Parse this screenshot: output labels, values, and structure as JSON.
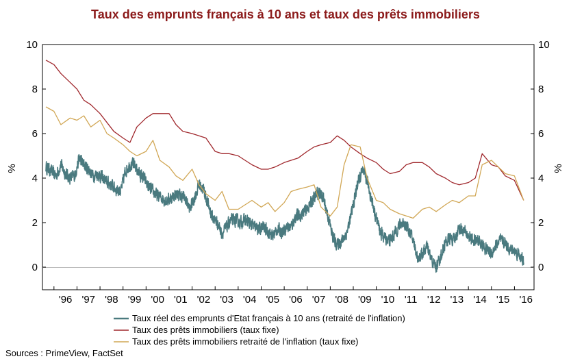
{
  "chart_data": {
    "type": "line",
    "title": "Taux des emprunts français à 10 ans et taux des prêts immobiliers",
    "title_color": "#8B1A1A",
    "ylabel_left": "%",
    "ylabel_right": "%",
    "ylim": [
      -1,
      10
    ],
    "yticks": [
      0,
      2,
      4,
      6,
      8,
      10
    ],
    "xlim": [
      1995.5,
      2016.85
    ],
    "x_tick_labels": [
      "'96",
      "'97",
      "'98",
      "'99",
      "'00",
      "'01",
      "'02",
      "'03",
      "'04",
      "'05",
      "'06",
      "'07",
      "'08",
      "'09",
      "'10",
      "'11",
      "'12",
      "'13",
      "'14",
      "'15",
      "'16"
    ],
    "x_tick_positions": [
      1996.5,
      1997.5,
      1998.5,
      1999.5,
      2000.5,
      2001.5,
      2002.5,
      2003.5,
      2004.5,
      2005.5,
      2006.5,
      2007.5,
      2008.5,
      2009.5,
      2010.5,
      2011.5,
      2012.5,
      2013.5,
      2014.5,
      2015.5,
      2016.5
    ],
    "grid": false,
    "legend_placement": "bottom",
    "source": "Sources : PrimeView, FactSet",
    "series": [
      {
        "name": "Taux réel des emprunts d'Etat français à 10 ans (retraité de l'inflation)",
        "color": "#4A7A7F",
        "noisy": true,
        "x": [
          1995.65,
          1995.9,
          1996.1,
          1996.3,
          1996.5,
          1996.7,
          1996.9,
          1997.1,
          1997.3,
          1997.5,
          1997.7,
          1997.9,
          1998.1,
          1998.3,
          1998.5,
          1998.7,
          1998.9,
          1999.1,
          1999.3,
          1999.5,
          1999.7,
          1999.9,
          2000.1,
          2000.3,
          2000.5,
          2000.7,
          2000.9,
          2001.1,
          2001.3,
          2001.5,
          2001.7,
          2001.9,
          2002.1,
          2002.3,
          2002.5,
          2002.7,
          2002.9,
          2003.1,
          2003.3,
          2003.5,
          2003.7,
          2003.9,
          2004.1,
          2004.3,
          2004.5,
          2004.7,
          2004.9,
          2005.1,
          2005.3,
          2005.5,
          2005.7,
          2005.9,
          2006.1,
          2006.3,
          2006.5,
          2006.7,
          2006.9,
          2007.1,
          2007.3,
          2007.5,
          2007.7,
          2007.9,
          2008.1,
          2008.3,
          2008.5,
          2008.7,
          2008.9,
          2009.1,
          2009.2,
          2009.4,
          2009.6,
          2009.8,
          2010.0,
          2010.2,
          2010.4,
          2010.6,
          2010.8,
          2011.0,
          2011.2,
          2011.4,
          2011.6,
          2011.8,
          2012.0,
          2012.2,
          2012.4,
          2012.6,
          2012.8,
          2013.0,
          2013.2,
          2013.4,
          2013.6,
          2013.8,
          2014.0,
          2014.2,
          2014.4,
          2014.6,
          2014.8,
          2015.0,
          2015.2,
          2015.4,
          2015.6,
          2015.8,
          2016.0,
          2016.2,
          2016.4
        ],
        "y": [
          4.5,
          4.3,
          4.1,
          4.6,
          4.2,
          4.0,
          4.1,
          4.9,
          4.6,
          4.4,
          4.1,
          4.2,
          4.0,
          3.8,
          3.7,
          3.5,
          3.4,
          4.3,
          4.6,
          4.6,
          4.2,
          4.0,
          3.6,
          3.4,
          3.2,
          3.1,
          3.0,
          3.1,
          3.3,
          3.2,
          3.1,
          2.6,
          3.1,
          3.7,
          3.5,
          2.8,
          2.2,
          2.0,
          1.5,
          1.8,
          2.1,
          2.1,
          2.0,
          2.1,
          2.0,
          1.8,
          1.7,
          1.8,
          1.6,
          1.4,
          1.7,
          1.6,
          1.8,
          1.8,
          2.3,
          2.3,
          2.5,
          2.8,
          3.1,
          3.4,
          3.1,
          2.3,
          1.4,
          1.0,
          1.2,
          1.5,
          2.3,
          3.3,
          3.8,
          4.3,
          3.9,
          3.0,
          2.2,
          1.5,
          1.3,
          1.2,
          1.5,
          1.9,
          2.0,
          1.7,
          1.2,
          0.4,
          0.6,
          0.9,
          0.3,
          0.0,
          0.5,
          1.1,
          1.3,
          1.2,
          1.8,
          1.6,
          1.4,
          1.2,
          1.2,
          1.0,
          0.8,
          0.6,
          1.0,
          1.2,
          1.1,
          0.8,
          0.7,
          0.6,
          0.2
        ]
      },
      {
        "name": "Taux des prêts immobiliers (taux fixe)",
        "color": "#A0282D",
        "noisy": false,
        "x": [
          1995.65,
          1996.0,
          1996.3,
          1996.7,
          1997.0,
          1997.3,
          1997.6,
          1998.0,
          1998.3,
          1998.6,
          1999.0,
          1999.3,
          1999.6,
          2000.0,
          2000.3,
          2000.6,
          2001.0,
          2001.3,
          2001.6,
          2002.0,
          2002.3,
          2002.6,
          2003.0,
          2003.3,
          2003.6,
          2004.0,
          2004.3,
          2004.6,
          2005.0,
          2005.3,
          2005.6,
          2006.0,
          2006.3,
          2006.6,
          2007.0,
          2007.3,
          2007.6,
          2008.0,
          2008.3,
          2008.6,
          2008.9,
          2009.3,
          2009.6,
          2010.0,
          2010.3,
          2010.6,
          2011.0,
          2011.3,
          2011.6,
          2012.0,
          2012.3,
          2012.6,
          2013.0,
          2013.3,
          2013.6,
          2014.0,
          2014.3,
          2014.6,
          2015.0,
          2015.3,
          2015.6,
          2016.0,
          2016.4
        ],
        "y": [
          9.3,
          9.1,
          8.7,
          8.3,
          8.0,
          7.5,
          7.3,
          6.9,
          6.5,
          6.1,
          5.8,
          5.6,
          6.3,
          6.7,
          6.9,
          6.9,
          6.9,
          6.4,
          6.1,
          6.0,
          5.9,
          5.8,
          5.2,
          5.1,
          5.1,
          5.0,
          4.8,
          4.6,
          4.4,
          4.4,
          4.5,
          4.7,
          4.8,
          4.9,
          5.2,
          5.4,
          5.5,
          5.6,
          5.9,
          5.7,
          5.4,
          5.1,
          4.9,
          4.7,
          4.4,
          4.2,
          4.3,
          4.6,
          4.7,
          4.7,
          4.5,
          4.2,
          4.0,
          3.8,
          3.7,
          3.8,
          4.0,
          5.1,
          4.6,
          4.5,
          4.1,
          3.9,
          3.0
        ]
      },
      {
        "name": "Taux des prêts immobiliers retraité de l'inflation (taux fixe)",
        "color": "#D1A755",
        "noisy": false,
        "x": [
          1995.65,
          1996.0,
          1996.3,
          1996.7,
          1997.0,
          1997.3,
          1997.6,
          1998.0,
          1998.3,
          1998.6,
          1999.0,
          1999.3,
          1999.6,
          2000.0,
          2000.3,
          2000.6,
          2001.0,
          2001.3,
          2001.6,
          2002.0,
          2002.3,
          2002.6,
          2003.0,
          2003.3,
          2003.6,
          2004.0,
          2004.3,
          2004.6,
          2005.0,
          2005.3,
          2005.6,
          2006.0,
          2006.3,
          2006.6,
          2007.0,
          2007.3,
          2007.6,
          2008.0,
          2008.3,
          2008.6,
          2008.9,
          2009.3,
          2009.6,
          2010.0,
          2010.3,
          2010.6,
          2011.0,
          2011.3,
          2011.6,
          2012.0,
          2012.3,
          2012.6,
          2013.0,
          2013.3,
          2013.6,
          2014.0,
          2014.3,
          2014.6,
          2015.0,
          2015.3,
          2015.6,
          2016.0,
          2016.4
        ],
        "y": [
          7.2,
          7.0,
          6.4,
          6.7,
          6.6,
          6.8,
          6.3,
          6.6,
          6.0,
          5.8,
          5.5,
          5.2,
          5.0,
          5.2,
          5.7,
          4.8,
          4.5,
          4.1,
          3.9,
          4.4,
          3.7,
          3.3,
          3.0,
          3.4,
          2.6,
          2.6,
          2.8,
          3.0,
          2.7,
          2.9,
          2.5,
          2.9,
          3.4,
          3.5,
          3.6,
          3.7,
          2.7,
          2.3,
          2.7,
          4.6,
          5.5,
          5.4,
          4.0,
          3.0,
          2.9,
          2.6,
          2.4,
          2.3,
          2.2,
          2.6,
          2.7,
          2.5,
          2.8,
          3.0,
          2.9,
          3.2,
          3.2,
          4.6,
          4.8,
          4.5,
          4.2,
          4.1,
          3.0
        ]
      }
    ]
  }
}
